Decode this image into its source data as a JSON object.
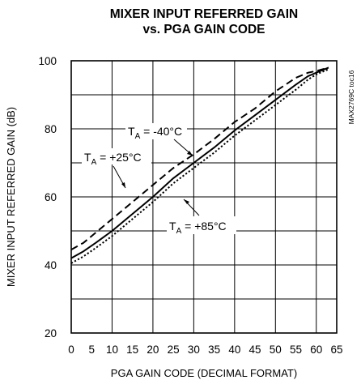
{
  "chart_data": {
    "type": "line",
    "title": [
      "MIXER INPUT REFERRED GAIN",
      "vs. PGA GAIN CODE"
    ],
    "xlabel": "PGA GAIN CODE (DECIMAL FORMAT)",
    "ylabel": "MIXER INPUT REFERRED GAIN (dB)",
    "xlim": [
      0,
      65
    ],
    "ylim": [
      20,
      100
    ],
    "xticks": [
      "0",
      "5",
      "10",
      "15",
      "20",
      "25",
      "30",
      "35",
      "40",
      "45",
      "50",
      "55",
      "60",
      "65"
    ],
    "yticks": [
      "20",
      "40",
      "60",
      "80",
      "100"
    ],
    "grid": true,
    "side_label": "MAX2769C toc16",
    "series": [
      {
        "name": "TA = -40°C",
        "style": "dashed",
        "x": [
          0,
          3,
          6,
          10,
          15,
          20,
          25,
          30,
          35,
          40,
          45,
          50,
          55,
          58,
          60,
          63
        ],
        "y": [
          44.5,
          46.5,
          49.5,
          53.5,
          58.5,
          63.5,
          68.5,
          72.5,
          77,
          82,
          86,
          91,
          95,
          96.5,
          97,
          98
        ]
      },
      {
        "name": "TA = +25°C",
        "style": "solid",
        "x": [
          0,
          3,
          6,
          10,
          15,
          20,
          25,
          30,
          35,
          40,
          45,
          50,
          55,
          58,
          60,
          63
        ],
        "y": [
          42,
          44,
          46.5,
          50,
          55,
          60,
          65.5,
          70,
          74.5,
          79.5,
          84,
          88.5,
          93,
          95.5,
          96.5,
          98
        ]
      },
      {
        "name": "TA = +85°C",
        "style": "dotted",
        "x": [
          0,
          3,
          6,
          10,
          15,
          20,
          25,
          30,
          35,
          40,
          45,
          50,
          55,
          58,
          60,
          63
        ],
        "y": [
          40.5,
          42.5,
          45,
          48.5,
          53.5,
          58.5,
          64,
          68.5,
          73,
          78,
          82.5,
          87,
          91.5,
          94.5,
          96,
          97.5
        ]
      }
    ],
    "annotations": [
      {
        "main": "T",
        "sub": "A",
        "rest": " = -40°C"
      },
      {
        "main": "T",
        "sub": "A",
        "rest": " = +25°C"
      },
      {
        "main": "T",
        "sub": "A",
        "rest": " = +85°C"
      }
    ]
  }
}
